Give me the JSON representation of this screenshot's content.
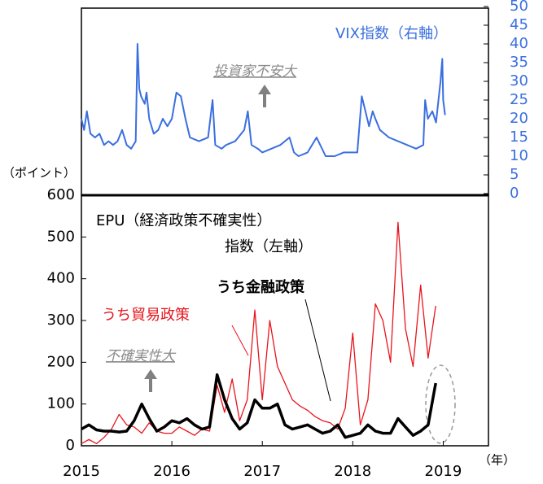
{
  "chart_data": [
    {
      "type": "line",
      "annotations": [
        "VIX指数（右軸）",
        "投資家不安大"
      ],
      "xlim": [
        2015,
        2019.5
      ],
      "y2lim": [
        0,
        50
      ],
      "y2ticks": [
        0,
        5,
        10,
        15,
        20,
        25,
        30,
        35,
        40,
        45,
        50
      ],
      "x": [
        2015.0,
        2015.03,
        2015.06,
        2015.1,
        2015.15,
        2015.2,
        2015.25,
        2015.3,
        2015.35,
        2015.4,
        2015.45,
        2015.5,
        2015.55,
        2015.6,
        2015.62,
        2015.64,
        2015.66,
        2015.7,
        2015.72,
        2015.75,
        2015.8,
        2015.85,
        2015.9,
        2015.95,
        2016.0,
        2016.05,
        2016.1,
        2016.15,
        2016.2,
        2016.3,
        2016.4,
        2016.45,
        2016.48,
        2016.55,
        2016.6,
        2016.7,
        2016.8,
        2016.84,
        2016.88,
        2016.95,
        2017.0,
        2017.1,
        2017.2,
        2017.3,
        2017.35,
        2017.4,
        2017.5,
        2017.6,
        2017.62,
        2017.7,
        2017.8,
        2017.9,
        2017.98,
        2018.05,
        2018.1,
        2018.13,
        2018.18,
        2018.22,
        2018.25,
        2018.3,
        2018.4,
        2018.5,
        2018.6,
        2018.7,
        2018.78,
        2018.8,
        2018.83,
        2018.88,
        2018.92,
        2018.97,
        2018.99,
        2019.0,
        2019.02
      ],
      "series": [
        {
          "name": "VIX指数（右軸）",
          "color": "#3a6fe0",
          "axis": "y2",
          "values": [
            20,
            17,
            22,
            16,
            15,
            16,
            13,
            14,
            13,
            14,
            17,
            13,
            12,
            14,
            40,
            28,
            26,
            24,
            27,
            20,
            16,
            17,
            20,
            18,
            20,
            27,
            26,
            20,
            15,
            14,
            15,
            25,
            13,
            12,
            13,
            14,
            17,
            22,
            13,
            12,
            11,
            12,
            13,
            15,
            11,
            10,
            11,
            15,
            14,
            10,
            10,
            11,
            11,
            11,
            26,
            23,
            18,
            22,
            20,
            17,
            15,
            14,
            13,
            12,
            13,
            25,
            20,
            22,
            19,
            30,
            36,
            25,
            21
          ]
        }
      ]
    },
    {
      "type": "line",
      "annotations": [
        "EPU（経済政策不確実性）",
        "指数（左軸）",
        "不確実性大"
      ],
      "ylabel": "（ポイント）",
      "xlabel": "（年）",
      "xlim": [
        2015,
        2019.5
      ],
      "xticks": [
        2015,
        2016,
        2017,
        2018,
        2019
      ],
      "ylim": [
        0,
        600
      ],
      "yticks": [
        0,
        100,
        200,
        300,
        400,
        500,
        600
      ],
      "x": [
        2015.0,
        2015.083,
        2015.167,
        2015.25,
        2015.333,
        2015.417,
        2015.5,
        2015.583,
        2015.667,
        2015.75,
        2015.833,
        2015.917,
        2016.0,
        2016.083,
        2016.167,
        2016.25,
        2016.333,
        2016.417,
        2016.5,
        2016.583,
        2016.667,
        2016.75,
        2016.833,
        2016.917,
        2017.0,
        2017.083,
        2017.167,
        2017.25,
        2017.333,
        2017.417,
        2017.5,
        2017.583,
        2017.667,
        2017.75,
        2017.833,
        2017.917,
        2018.0,
        2018.083,
        2018.167,
        2018.25,
        2018.333,
        2018.417,
        2018.5,
        2018.583,
        2018.667,
        2018.75,
        2018.833,
        2018.917
      ],
      "series": [
        {
          "name": "うち貿易政策",
          "color": "#e8141c",
          "width": 1.3,
          "values": [
            5,
            15,
            5,
            20,
            40,
            75,
            50,
            45,
            30,
            55,
            35,
            30,
            30,
            45,
            35,
            25,
            40,
            35,
            145,
            80,
            160,
            60,
            110,
            325,
            110,
            300,
            190,
            150,
            110,
            95,
            85,
            70,
            60,
            55,
            40,
            90,
            270,
            50,
            110,
            340,
            300,
            200,
            535,
            280,
            190,
            385,
            210,
            335
          ]
        },
        {
          "name": "うち金融政策",
          "color": "#000000",
          "width": 3.5,
          "values": [
            40,
            50,
            38,
            35,
            35,
            33,
            35,
            60,
            100,
            65,
            35,
            45,
            60,
            55,
            65,
            50,
            40,
            45,
            170,
            110,
            65,
            40,
            55,
            110,
            90,
            90,
            100,
            50,
            40,
            45,
            50,
            40,
            30,
            35,
            50,
            20,
            25,
            30,
            50,
            35,
            30,
            30,
            65,
            45,
            25,
            35,
            50,
            150
          ]
        }
      ]
    }
  ]
}
